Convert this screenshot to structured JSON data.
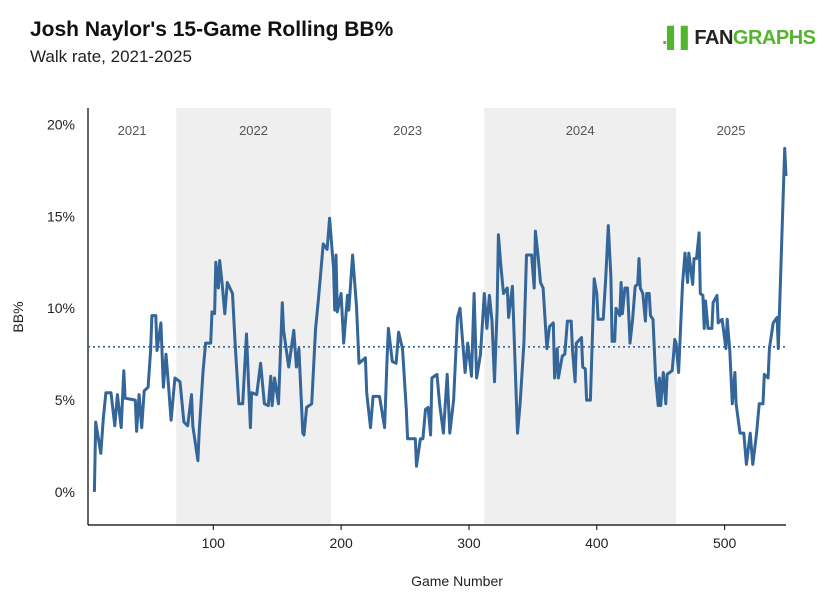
{
  "header": {
    "title": "Josh Naylor's 15-Game Rolling BB%",
    "subtitle": "Walk rate, 2021-2025"
  },
  "logo": {
    "text_fan": "FAN",
    "text_graphs": "GRAPHS"
  },
  "colors": {
    "line": "#346699",
    "shade": "#efefef",
    "mean_line": "#346699",
    "logo_green": "#53b52e"
  },
  "chart_data": {
    "type": "line",
    "title": "Josh Naylor's 15-Game Rolling BB%",
    "subtitle": "Walk rate, 2021-2025",
    "xlabel": "Game Number",
    "ylabel": "BB%",
    "xlim": [
      2,
      548
    ],
    "ylim": [
      -1.8,
      20.9
    ],
    "x_ticks": [
      100,
      200,
      300,
      400,
      500
    ],
    "x_tick_labels": [
      "100",
      "200",
      "300",
      "400",
      "500"
    ],
    "y_ticks": [
      0,
      5,
      10,
      15,
      20
    ],
    "y_tick_labels": [
      "0%",
      "5%",
      "10%",
      "15%",
      "20%"
    ],
    "grid": false,
    "mean_line": 7.9,
    "seasons": [
      {
        "label": "2021",
        "start": 2,
        "end": 71,
        "shaded": false
      },
      {
        "label": "2022",
        "start": 71,
        "end": 192,
        "shaded": true
      },
      {
        "label": "2023",
        "start": 192,
        "end": 312,
        "shaded": false
      },
      {
        "label": "2024",
        "start": 312,
        "end": 462,
        "shaded": true
      },
      {
        "label": "2025",
        "start": 462,
        "end": 548,
        "shaded": false
      }
    ],
    "points": [
      [
        7,
        0.0
      ],
      [
        8,
        3.8
      ],
      [
        12,
        2.1
      ],
      [
        14,
        4.0
      ],
      [
        16,
        5.4
      ],
      [
        20,
        5.4
      ],
      [
        23,
        3.6
      ],
      [
        25,
        5.3
      ],
      [
        28,
        3.5
      ],
      [
        30,
        6.6
      ],
      [
        31,
        5.1
      ],
      [
        39,
        5.0
      ],
      [
        40,
        3.3
      ],
      [
        42,
        5.3
      ],
      [
        44,
        3.5
      ],
      [
        46,
        5.5
      ],
      [
        49,
        5.7
      ],
      [
        51,
        7.7
      ],
      [
        52,
        9.6
      ],
      [
        55,
        9.6
      ],
      [
        56,
        7.7
      ],
      [
        59,
        9.2
      ],
      [
        61,
        5.7
      ],
      [
        63,
        7.5
      ],
      [
        65,
        5.8
      ],
      [
        67,
        3.9
      ],
      [
        70,
        6.2
      ],
      [
        74,
        6.0
      ],
      [
        77,
        3.8
      ],
      [
        80,
        3.6
      ],
      [
        83,
        5.3
      ],
      [
        84,
        3.6
      ],
      [
        88,
        1.7
      ],
      [
        89,
        3.3
      ],
      [
        92,
        6.6
      ],
      [
        94,
        8.1
      ],
      [
        98,
        8.1
      ],
      [
        99,
        9.8
      ],
      [
        101,
        9.7
      ],
      [
        102,
        12.5
      ],
      [
        104,
        11.1
      ],
      [
        105,
        12.6
      ],
      [
        107,
        11.3
      ],
      [
        109,
        9.7
      ],
      [
        111,
        11.4
      ],
      [
        115,
        10.8
      ],
      [
        117,
        8.2
      ],
      [
        120,
        4.8
      ],
      [
        123,
        4.8
      ],
      [
        126,
        8.6
      ],
      [
        129,
        3.5
      ],
      [
        130,
        5.4
      ],
      [
        134,
        5.3
      ],
      [
        137,
        7.0
      ],
      [
        140,
        4.8
      ],
      [
        143,
        4.7
      ],
      [
        145,
        6.3
      ],
      [
        146,
        4.7
      ],
      [
        148,
        6.2
      ],
      [
        151,
        4.8
      ],
      [
        154,
        10.3
      ],
      [
        155,
        8.8
      ],
      [
        159,
        6.8
      ],
      [
        163,
        8.8
      ],
      [
        165,
        6.8
      ],
      [
        167,
        7.8
      ],
      [
        170,
        3.2
      ],
      [
        171,
        3.1
      ],
      [
        173,
        4.6
      ],
      [
        177,
        4.8
      ],
      [
        180,
        8.9
      ],
      [
        182,
        10.3
      ],
      [
        184,
        11.9
      ],
      [
        186,
        13.5
      ],
      [
        189,
        13.2
      ],
      [
        191,
        14.9
      ],
      [
        194,
        12.2
      ],
      [
        195,
        9.9
      ],
      [
        196,
        12.9
      ],
      [
        197,
        9.8
      ],
      [
        200,
        10.8
      ],
      [
        202,
        8.1
      ],
      [
        205,
        10.7
      ],
      [
        206,
        9.9
      ],
      [
        209,
        12.9
      ],
      [
        212,
        10.1
      ],
      [
        214,
        7.0
      ],
      [
        219,
        7.3
      ],
      [
        220,
        5.4
      ],
      [
        223,
        3.5
      ],
      [
        225,
        5.2
      ],
      [
        230,
        5.2
      ],
      [
        234,
        3.5
      ],
      [
        236,
        7.3
      ],
      [
        237,
        8.9
      ],
      [
        240,
        7.1
      ],
      [
        243,
        7.0
      ],
      [
        245,
        8.7
      ],
      [
        248,
        7.8
      ],
      [
        251,
        4.5
      ],
      [
        252,
        2.9
      ],
      [
        258,
        2.9
      ],
      [
        259,
        1.4
      ],
      [
        262,
        2.9
      ],
      [
        264,
        2.9
      ],
      [
        266,
        4.5
      ],
      [
        268,
        4.6
      ],
      [
        270,
        3.1
      ],
      [
        271,
        6.2
      ],
      [
        275,
        6.4
      ],
      [
        277,
        4.8
      ],
      [
        280,
        3.2
      ],
      [
        283,
        6.4
      ],
      [
        285,
        3.2
      ],
      [
        288,
        5.0
      ],
      [
        291,
        9.5
      ],
      [
        293,
        10.0
      ],
      [
        297,
        6.5
      ],
      [
        299,
        8.1
      ],
      [
        302,
        6.3
      ],
      [
        304,
        10.8
      ],
      [
        306,
        6.2
      ],
      [
        309,
        7.5
      ],
      [
        312,
        10.8
      ],
      [
        314,
        8.9
      ],
      [
        316,
        10.7
      ],
      [
        318,
        9.3
      ],
      [
        320,
        6.0
      ],
      [
        322,
        9.9
      ],
      [
        323,
        14.0
      ],
      [
        325,
        12.3
      ],
      [
        327,
        10.8
      ],
      [
        330,
        11.1
      ],
      [
        331,
        9.5
      ],
      [
        334,
        11.2
      ],
      [
        338,
        3.2
      ],
      [
        340,
        4.8
      ],
      [
        343,
        8.1
      ],
      [
        345,
        12.9
      ],
      [
        349,
        12.9
      ],
      [
        351,
        11.1
      ],
      [
        352,
        14.2
      ],
      [
        354,
        12.9
      ],
      [
        356,
        11.4
      ],
      [
        358,
        11.1
      ],
      [
        361,
        7.8
      ],
      [
        363,
        9.0
      ],
      [
        366,
        9.2
      ],
      [
        367,
        6.2
      ],
      [
        369,
        7.8
      ],
      [
        370,
        6.2
      ],
      [
        373,
        7.4
      ],
      [
        375,
        7.5
      ],
      [
        377,
        9.3
      ],
      [
        380,
        9.3
      ],
      [
        381,
        7.7
      ],
      [
        383,
        6.0
      ],
      [
        384,
        8.1
      ],
      [
        388,
        8.4
      ],
      [
        389,
        6.8
      ],
      [
        391,
        6.7
      ],
      [
        392,
        5.0
      ],
      [
        395,
        5.0
      ],
      [
        398,
        11.6
      ],
      [
        400,
        10.8
      ],
      [
        401,
        9.4
      ],
      [
        405,
        9.4
      ],
      [
        407,
        11.6
      ],
      [
        409,
        14.5
      ],
      [
        411,
        11.7
      ],
      [
        412,
        8.2
      ],
      [
        414,
        8.2
      ],
      [
        415,
        10.0
      ],
      [
        418,
        9.6
      ],
      [
        419,
        11.4
      ],
      [
        420,
        9.7
      ],
      [
        422,
        11.1
      ],
      [
        424,
        11.1
      ],
      [
        426,
        8.1
      ],
      [
        428,
        9.4
      ],
      [
        430,
        11.2
      ],
      [
        432,
        11.3
      ],
      [
        433,
        12.7
      ],
      [
        434,
        11.1
      ],
      [
        436,
        10.8
      ],
      [
        438,
        9.3
      ],
      [
        439,
        10.8
      ],
      [
        441,
        10.8
      ],
      [
        442,
        9.6
      ],
      [
        444,
        9.4
      ],
      [
        446,
        6.2
      ],
      [
        448,
        4.7
      ],
      [
        449,
        6.2
      ],
      [
        450,
        4.7
      ],
      [
        452,
        6.5
      ],
      [
        454,
        4.8
      ],
      [
        455,
        6.4
      ],
      [
        459,
        6.6
      ],
      [
        461,
        8.3
      ],
      [
        462,
        8.1
      ],
      [
        464,
        6.5
      ],
      [
        467,
        11.3
      ],
      [
        469,
        13.0
      ],
      [
        471,
        11.4
      ],
      [
        472,
        13.0
      ],
      [
        475,
        11.3
      ],
      [
        476,
        12.7
      ],
      [
        478,
        12.7
      ],
      [
        480,
        14.1
      ],
      [
        481,
        10.8
      ],
      [
        483,
        10.7
      ],
      [
        484,
        8.9
      ],
      [
        485,
        10.4
      ],
      [
        487,
        8.9
      ],
      [
        490,
        8.9
      ],
      [
        491,
        10.3
      ],
      [
        494,
        10.7
      ],
      [
        495,
        9.2
      ],
      [
        498,
        9.4
      ],
      [
        501,
        7.8
      ],
      [
        502,
        9.4
      ],
      [
        504,
        7.7
      ],
      [
        506,
        4.8
      ],
      [
        508,
        6.5
      ],
      [
        509,
        4.8
      ],
      [
        512,
        3.2
      ],
      [
        515,
        3.2
      ],
      [
        517,
        1.5
      ],
      [
        520,
        3.2
      ],
      [
        522,
        1.5
      ],
      [
        525,
        3.2
      ],
      [
        527,
        4.8
      ],
      [
        530,
        4.8
      ],
      [
        531,
        6.4
      ],
      [
        534,
        6.2
      ],
      [
        535,
        7.8
      ],
      [
        538,
        9.2
      ],
      [
        541,
        9.5
      ],
      [
        542,
        7.8
      ],
      [
        547,
        18.7
      ],
      [
        548,
        17.2
      ]
    ]
  }
}
